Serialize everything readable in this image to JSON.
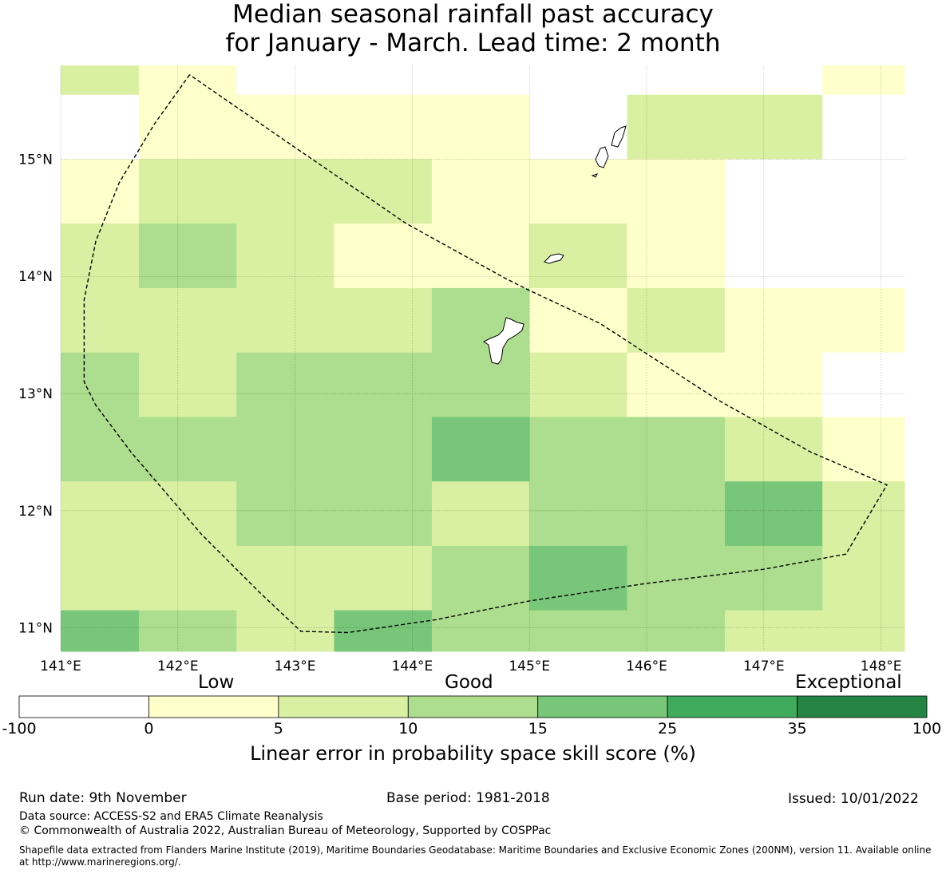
{
  "title": {
    "line1": "Median seasonal rainfall past accuracy",
    "line2": "for January - March. Lead time: 2 month"
  },
  "map": {
    "lon_range": [
      141.0,
      148.2
    ],
    "lat_range": [
      10.8,
      15.8
    ],
    "lon_ticks": [
      "141°E",
      "142°E",
      "143°E",
      "144°E",
      "145°E",
      "146°E",
      "147°E",
      "148°E"
    ],
    "lat_ticks": [
      "11°N",
      "12°N",
      "13°N",
      "14°N",
      "15°N"
    ],
    "grid_lon_edges": [
      141.0,
      141.667,
      142.5,
      143.333,
      144.167,
      145.0,
      145.833,
      146.667,
      147.5,
      148.2
    ],
    "grid_lat_edges": [
      15.8,
      15.55,
      15.0,
      14.45,
      13.9,
      13.35,
      12.8,
      12.25,
      11.7,
      11.15,
      10.8
    ],
    "grid_skill_class": [
      [
        2,
        1,
        0,
        0,
        0,
        0,
        0,
        0,
        1
      ],
      [
        0,
        1,
        1,
        1,
        1,
        0,
        2,
        2,
        0
      ],
      [
        1,
        2,
        2,
        2,
        1,
        1,
        1,
        0,
        0
      ],
      [
        2,
        3,
        2,
        1,
        1,
        2,
        1,
        0,
        0
      ],
      [
        2,
        2,
        2,
        2,
        3,
        1,
        2,
        1,
        1
      ],
      [
        3,
        2,
        3,
        3,
        3,
        2,
        1,
        1,
        0
      ],
      [
        3,
        3,
        3,
        3,
        4,
        3,
        3,
        2,
        1
      ],
      [
        2,
        2,
        3,
        3,
        2,
        3,
        3,
        4,
        2
      ],
      [
        2,
        2,
        2,
        2,
        3,
        4,
        3,
        3,
        2
      ],
      [
        4,
        3,
        2,
        4,
        3,
        3,
        3,
        2,
        2
      ]
    ],
    "eez_boundary": [
      [
        142.1,
        15.72
      ],
      [
        141.8,
        15.3
      ],
      [
        141.5,
        14.8
      ],
      [
        141.3,
        14.3
      ],
      [
        141.2,
        13.8
      ],
      [
        141.2,
        13.1
      ],
      [
        141.3,
        12.9
      ],
      [
        141.6,
        12.5
      ],
      [
        142.2,
        11.8
      ],
      [
        142.7,
        11.3
      ],
      [
        143.05,
        10.97
      ],
      [
        143.45,
        10.96
      ],
      [
        144.2,
        11.07
      ],
      [
        145.0,
        11.23
      ],
      [
        146.0,
        11.38
      ],
      [
        147.0,
        11.5
      ],
      [
        147.7,
        11.63
      ],
      [
        148.05,
        12.22
      ],
      [
        147.4,
        12.5
      ],
      [
        146.6,
        12.95
      ],
      [
        145.6,
        13.6
      ],
      [
        145.0,
        13.88
      ],
      [
        144.8,
        13.98
      ],
      [
        143.95,
        14.45
      ],
      [
        143.0,
        15.1
      ],
      [
        142.1,
        15.72
      ]
    ],
    "islands": [
      "Guam",
      "Rota",
      "Tinian",
      "Saipan",
      "Farallon de Medinilla"
    ]
  },
  "colorbar": {
    "category_labels": {
      "low": "Low",
      "good": "Good",
      "exceptional": "Exceptional"
    },
    "ticks": [
      "-100",
      "0",
      "5",
      "10",
      "15",
      "25",
      "35",
      "100"
    ],
    "colors": [
      "#ffffff",
      "#ffffcc",
      "#d9f0a3",
      "#addd8e",
      "#78c679",
      "#41ab5d",
      "#238443"
    ],
    "title": "Linear error in probability space skill score (%)"
  },
  "footer": {
    "run_date": "Run date: 9th November",
    "base_period": "Base period: 1981-2018",
    "issued": "Issued: 10/01/2022",
    "data_source": "Data source: ACCESS-S2 and ERA5 Climate Reanalysis",
    "copyright": "© Commonwealth of Australia 2022, Australian Bureau of Meteorology, Supported by COSPPac",
    "shapefile_line1": "Shapefile data extracted from Flanders Marine Institute (2019), Maritime Boundaries Geodatabase: Maritime Boundaries and Exclusive Economic Zones (200NM), version 11. Available online",
    "shapefile_line2": "at http://www.marineregions.org/."
  }
}
